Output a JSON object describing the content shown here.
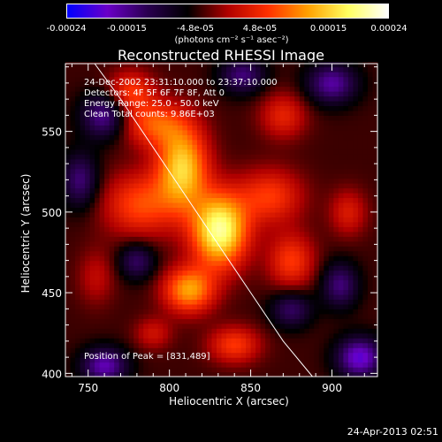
{
  "chart_data": {
    "type": "heatmap",
    "title": "Reconstructed RHESSI Image",
    "xlabel": "Heliocentric X (arcsec)",
    "ylabel": "Heliocentric Y (arcsec)",
    "xlim": [
      736,
      928
    ],
    "ylim": [
      398,
      592
    ],
    "x_ticks": [
      750,
      800,
      850,
      900
    ],
    "y_ticks": [
      400,
      450,
      500,
      550
    ],
    "colorbar": {
      "range": [
        -0.00024,
        0.00024
      ],
      "tick_labels": [
        "-0.00024",
        "-0.00015",
        "-4.8e-05",
        "4.8e-05",
        "0.00015",
        "0.00024"
      ],
      "tick_values": [
        -0.00024,
        -0.00015,
        -4.8e-05,
        4.8e-05,
        0.00015,
        0.00024
      ],
      "label": "(photons cm⁻² s⁻¹ asec⁻²)",
      "colors": [
        "#0000ff",
        "#6a00c8",
        "#2a0050",
        "#000000",
        "#b00000",
        "#ff3000",
        "#ffa000",
        "#ffff60",
        "#ffffff"
      ]
    },
    "info_lines": [
      "24-Dec-2002 23:31:10.000 to 23:37:10.000",
      "Detectors: 4F 5F 6F 7F 8F, Att 0",
      "Energy Range: 25.0 - 50.0 keV",
      "Clean    Total counts: 9.86E+03"
    ],
    "peak_label": "Position of Peak = [831,489]",
    "peak": [
      831,
      489
    ],
    "limb_points": [
      [
        754,
        592
      ],
      [
        770,
        570
      ],
      [
        790,
        540
      ],
      [
        810,
        510
      ],
      [
        830,
        480
      ],
      [
        850,
        450
      ],
      [
        870,
        420
      ],
      [
        888,
        398
      ]
    ],
    "sources": [
      {
        "x": 831,
        "y": 489,
        "amp": 0.00024,
        "sx": 12,
        "sy": 16
      },
      {
        "x": 808,
        "y": 528,
        "amp": 0.00019,
        "sx": 11,
        "sy": 18
      },
      {
        "x": 812,
        "y": 452,
        "amp": 0.00016,
        "sx": 11,
        "sy": 10
      },
      {
        "x": 782,
        "y": 505,
        "amp": 0.00011,
        "sx": 16,
        "sy": 14
      },
      {
        "x": 790,
        "y": 555,
        "amp": 0.00011,
        "sx": 14,
        "sy": 10
      },
      {
        "x": 862,
        "y": 510,
        "amp": 0.0001,
        "sx": 14,
        "sy": 12
      },
      {
        "x": 875,
        "y": 470,
        "amp": 0.0001,
        "sx": 10,
        "sy": 12
      },
      {
        "x": 776,
        "y": 575,
        "amp": 0.0001,
        "sx": 10,
        "sy": 9
      },
      {
        "x": 840,
        "y": 418,
        "amp": 0.0001,
        "sx": 11,
        "sy": 8
      },
      {
        "x": 870,
        "y": 560,
        "amp": 8e-05,
        "sx": 10,
        "sy": 10
      },
      {
        "x": 790,
        "y": 425,
        "amp": 6e-05,
        "sx": 8,
        "sy": 7
      },
      {
        "x": 910,
        "y": 500,
        "amp": 7e-05,
        "sx": 8,
        "sy": 10
      },
      {
        "x": 755,
        "y": 460,
        "amp": 5e-05,
        "sx": 8,
        "sy": 12
      },
      {
        "x": 760,
        "y": 560,
        "amp": -0.00012,
        "sx": 10,
        "sy": 10
      },
      {
        "x": 760,
        "y": 405,
        "amp": -0.00013,
        "sx": 10,
        "sy": 8
      },
      {
        "x": 917,
        "y": 410,
        "amp": -0.00015,
        "sx": 10,
        "sy": 9
      },
      {
        "x": 900,
        "y": 580,
        "amp": -0.00012,
        "sx": 11,
        "sy": 9
      },
      {
        "x": 845,
        "y": 585,
        "amp": -0.0001,
        "sx": 10,
        "sy": 8
      },
      {
        "x": 875,
        "y": 440,
        "amp": -9e-05,
        "sx": 9,
        "sy": 8
      },
      {
        "x": 905,
        "y": 455,
        "amp": -0.0001,
        "sx": 8,
        "sy": 10
      },
      {
        "x": 780,
        "y": 470,
        "amp": -9e-05,
        "sx": 8,
        "sy": 8
      },
      {
        "x": 745,
        "y": 520,
        "amp": -0.0001,
        "sx": 8,
        "sy": 12
      }
    ],
    "background": -4e-05
  },
  "footer": "24-Apr-2013 02:51"
}
